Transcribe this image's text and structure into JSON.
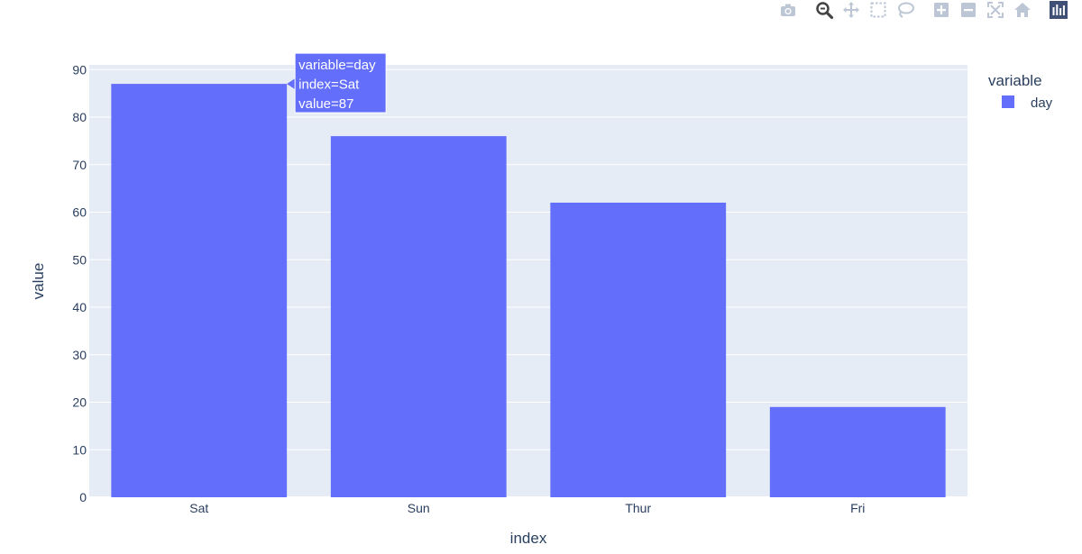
{
  "modebar": {
    "buttons": [
      {
        "icon": "camera-icon",
        "name": "download-png-button"
      },
      {
        "icon": "zoom-icon",
        "name": "zoom-button",
        "active": true
      },
      {
        "icon": "pan-icon",
        "name": "pan-button"
      },
      {
        "icon": "box-select-icon",
        "name": "box-select-button"
      },
      {
        "icon": "lasso-select-icon",
        "name": "lasso-select-button"
      },
      {
        "icon": "zoom-in-icon",
        "name": "zoom-in-button"
      },
      {
        "icon": "zoom-out-icon",
        "name": "zoom-out-button"
      },
      {
        "icon": "autoscale-icon",
        "name": "autoscale-button"
      },
      {
        "icon": "home-icon",
        "name": "reset-axes-button"
      },
      {
        "icon": "plotly-logo-icon",
        "name": "plotly-logo"
      }
    ]
  },
  "chart_data": {
    "type": "bar",
    "categories": [
      "Sat",
      "Sun",
      "Thur",
      "Fri"
    ],
    "series": [
      {
        "name": "day",
        "values": [
          87,
          76,
          62,
          19
        ],
        "color": "#636efa"
      }
    ],
    "xlabel": "index",
    "ylabel": "value",
    "ylim": [
      0,
      91
    ],
    "yticks": [
      0,
      10,
      20,
      30,
      40,
      50,
      60,
      70,
      80,
      90
    ],
    "grid": true,
    "plot_bgcolor": "#e5ecf6",
    "legend": {
      "title": "variable",
      "placement": "top-right"
    },
    "tooltip": {
      "lines": [
        "variable=day",
        "index=Sat",
        "value=87"
      ],
      "category": "Sat"
    }
  }
}
